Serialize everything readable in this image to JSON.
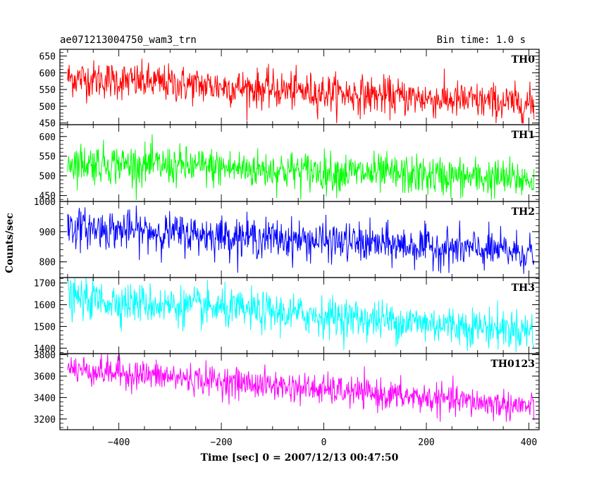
{
  "header": {
    "title": "ae071213004750_wam3_trn",
    "bin_time": "Bin time: 1.0 s"
  },
  "chart_data": {
    "type": "line",
    "xlabel": "Time [sec] 0 = 2007/12/13 00:47:50",
    "ylabel": "Counts/sec",
    "xlim": [
      -515,
      420
    ],
    "x_ticks": [
      -400,
      -200,
      0,
      200,
      400
    ],
    "x_range": [
      -500,
      410
    ],
    "panels": [
      {
        "name": "TH0",
        "color": "#ff0000",
        "ylim": [
          445,
          670
        ],
        "ticks": [
          450,
          500,
          550,
          600,
          650
        ],
        "trend": [
          585,
          505
        ],
        "noise": 28
      },
      {
        "name": "TH1",
        "color": "#00ff00",
        "ylim": [
          435,
          630
        ],
        "ticks": [
          450,
          500,
          550,
          600
        ],
        "trend": [
          535,
          490
        ],
        "noise": 25
      },
      {
        "name": "TH2",
        "color": "#0000ff",
        "ylim": [
          748,
          1000
        ],
        "ticks": [
          800,
          900,
          1000
        ],
        "trend": [
          915,
          830
        ],
        "noise": 32
      },
      {
        "name": "TH3",
        "color": "#00ffff",
        "ylim": [
          1375,
          1725
        ],
        "ticks": [
          1400,
          1500,
          1600,
          1700
        ],
        "trend": [
          1630,
          1480
        ],
        "noise": 45
      },
      {
        "name": "TH0123",
        "color": "#ff00ff",
        "ylim": [
          3100,
          3810
        ],
        "ticks": [
          3200,
          3400,
          3600,
          3800
        ],
        "trend": [
          3670,
          3310
        ],
        "noise": 70
      }
    ]
  }
}
